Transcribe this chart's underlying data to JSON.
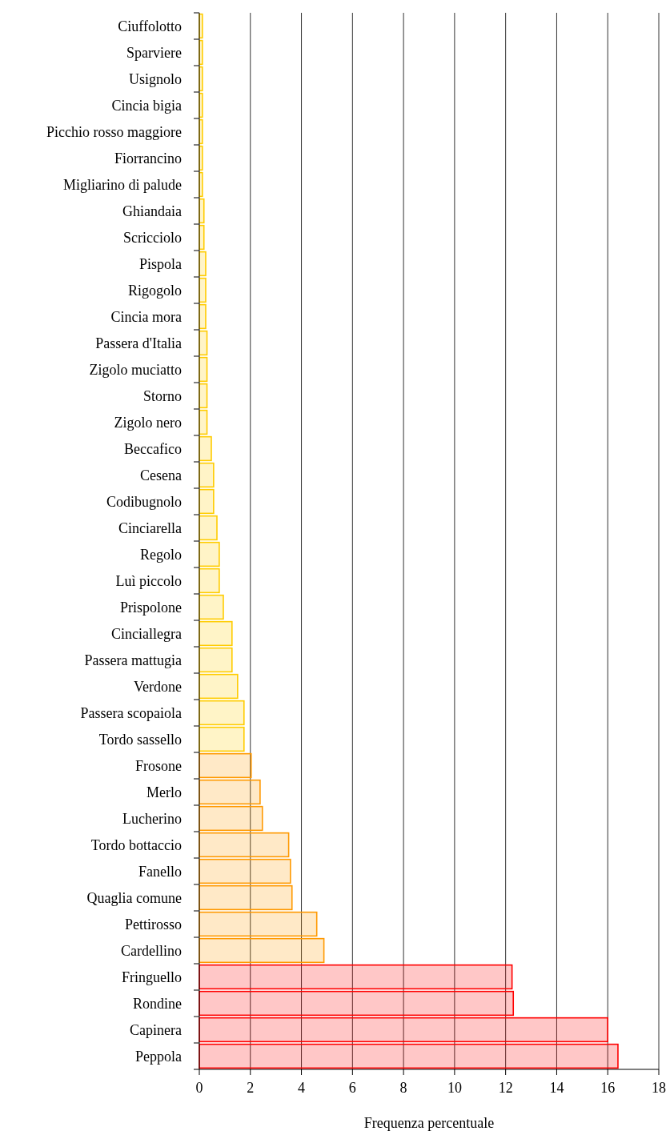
{
  "chart_data": {
    "type": "bar",
    "orientation": "horizontal",
    "xlabel": "Frequenza percentuale",
    "categories": [
      "Ciuffolotto",
      "Sparviere",
      "Usignolo",
      "Cincia bigia",
      "Picchio rosso maggiore",
      "Fiorrancino",
      "Migliarino di palude",
      "Ghiandaia",
      "Scricciolo",
      "Pispola",
      "Rigogolo",
      "Cincia mora",
      "Passera d'Italia",
      "Zigolo muciatto",
      "Storno",
      "Zigolo nero",
      "Beccafico",
      "Cesena",
      "Codibugnolo",
      "Cinciarella",
      "Regolo",
      "Luì piccolo",
      "Prispolone",
      "Cinciallegra",
      "Passera mattugia",
      "Verdone",
      "Passera scopaiola",
      "Tordo sassello",
      "Frosone",
      "Merlo",
      "Lucherino",
      "Tordo bottaccio",
      "Fanello",
      "Quaglia comune",
      "Pettirosso",
      "Cardellino",
      "Fringuello",
      "Rondine",
      "Capinera",
      "Peppola"
    ],
    "values": [
      0.12,
      0.12,
      0.12,
      0.12,
      0.12,
      0.12,
      0.12,
      0.18,
      0.18,
      0.25,
      0.25,
      0.25,
      0.3,
      0.3,
      0.3,
      0.3,
      0.47,
      0.56,
      0.56,
      0.69,
      0.78,
      0.78,
      0.94,
      1.28,
      1.28,
      1.5,
      1.75,
      1.75,
      2.03,
      2.38,
      2.47,
      3.5,
      3.57,
      3.63,
      4.6,
      4.88,
      12.25,
      12.3,
      16.0,
      16.4
    ],
    "colors": [
      "#ffcc00",
      "#ffcc00",
      "#ffcc00",
      "#ffcc00",
      "#ffcc00",
      "#ffcc00",
      "#ffcc00",
      "#ffcc00",
      "#ffcc00",
      "#ffcc00",
      "#ffcc00",
      "#ffcc00",
      "#ffcc00",
      "#ffcc00",
      "#ffcc00",
      "#ffcc00",
      "#ffcc00",
      "#ffcc00",
      "#ffcc00",
      "#ffcc00",
      "#ffcc00",
      "#ffcc00",
      "#ffcc00",
      "#ffcc00",
      "#ffcc00",
      "#ffcc00",
      "#ffcc00",
      "#ffcc00",
      "#ff9900",
      "#ff9900",
      "#ff9900",
      "#ff9900",
      "#ff9900",
      "#ff9900",
      "#ff9900",
      "#ff9900",
      "#ff0000",
      "#ff0000",
      "#ff0000",
      "#ff0000"
    ],
    "xlim": [
      0,
      18
    ],
    "xticks": [
      0,
      2,
      4,
      6,
      8,
      10,
      12,
      14,
      16,
      18
    ],
    "grid": "x"
  }
}
